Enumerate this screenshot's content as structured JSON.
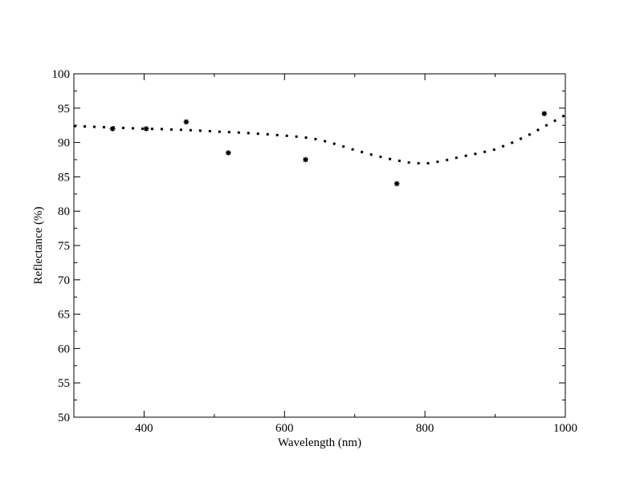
{
  "chart_data": {
    "type": "scatter",
    "xlabel": "Wavelength (nm)",
    "ylabel": "Reflectance (%)",
    "xlim": [
      300,
      1000
    ],
    "ylim": [
      50,
      100
    ],
    "x_major_ticks": [
      400,
      600,
      800,
      1000
    ],
    "x_minor_ticks": [
      300,
      500,
      700,
      900
    ],
    "y_major_ticks": [
      50,
      55,
      60,
      65,
      70,
      75,
      80,
      85,
      90,
      95,
      100
    ],
    "grid": false,
    "legend": "none",
    "series": [
      {
        "style": "dotted-line",
        "color": "#000000",
        "x": [
          300,
          325,
          350,
          375,
          400,
          425,
          450,
          475,
          500,
          525,
          550,
          575,
          600,
          625,
          650,
          675,
          700,
          725,
          750,
          775,
          800,
          825,
          850,
          875,
          900,
          925,
          950,
          975,
          1000
        ],
        "y": [
          92.4,
          92.3,
          92.2,
          92.1,
          92.0,
          91.95,
          91.85,
          91.75,
          91.6,
          91.5,
          91.35,
          91.2,
          91.0,
          90.8,
          90.4,
          89.7,
          88.9,
          88.2,
          87.6,
          87.1,
          86.9,
          87.3,
          87.9,
          88.4,
          89.0,
          90.0,
          91.2,
          92.6,
          94.0
        ]
      },
      {
        "style": "markers",
        "color": "#000000",
        "x": [
          355,
          403,
          460,
          520,
          630,
          760,
          970
        ],
        "y": [
          92.0,
          92.0,
          93.0,
          88.5,
          87.5,
          84.0,
          94.2
        ]
      }
    ]
  }
}
